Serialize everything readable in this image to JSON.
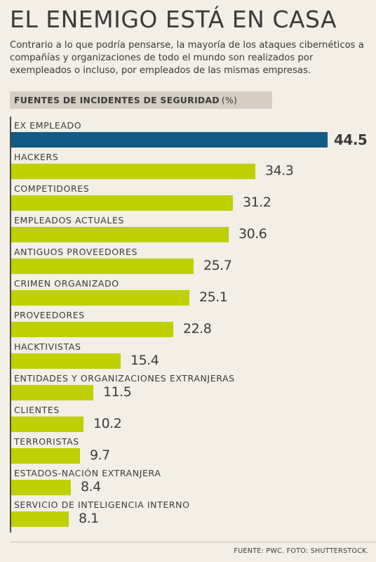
{
  "header": {
    "title": "EL ENEMIGO ESTÁ EN CASA",
    "subtitle": "Contrario a lo que podría pensarse, la mayoría de los ataques cibernéticos a compañías y organizaciones de todo el mundo son realizados por exempleados o incluso, por empleados de las mismas empresas."
  },
  "section": {
    "title": "FUENTES DE INCIDENTES DE SEGURIDAD",
    "unit": "(%)"
  },
  "chart_data": {
    "type": "bar",
    "orientation": "horizontal",
    "title": "FUENTES DE INCIDENTES DE SEGURIDAD (%)",
    "categories": [
      "EX EMPLEADO",
      "HACKERS",
      "COMPETIDORES",
      "EMPLEADOS ACTUALES",
      "ANTIGUOS PROVEEDORES",
      "CRIMEN ORGANIZADO",
      "PROVEEDORES",
      "HACKTIVISTAS",
      "ENTIDADES Y ORGANIZACIONES EXTRANJERAS",
      "CLIENTES",
      "TERRORISTAS",
      "ESTADOS-NACIÓN EXTRANJERA",
      "SERVICIO DE INTELIGENCIA INTERNO"
    ],
    "values": [
      44.5,
      34.3,
      31.2,
      30.6,
      25.7,
      25.1,
      22.8,
      15.4,
      11.5,
      10.2,
      9.7,
      8.4,
      8.1
    ],
    "value_labels": [
      "44.5",
      "34.3",
      "31.2",
      "30.6",
      "25.7",
      "25.1",
      "22.8",
      "15.4",
      "11.5",
      "10.2",
      "9.7",
      "8.4",
      "8.1"
    ],
    "highlight_index": 0,
    "colors": {
      "highlight": "#125b84",
      "default": "#bfd000"
    }
  },
  "footer": {
    "source": "FUENTE: PWC. FOTO: SHUTTERSTOCK."
  }
}
